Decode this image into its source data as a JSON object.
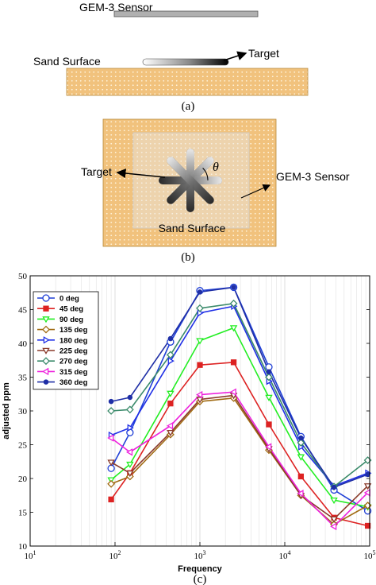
{
  "panel_a": {
    "sensor_label": "GEM-3 Sensor",
    "surface_label": "Sand Surface",
    "target_label": "Target",
    "caption": "(a)"
  },
  "panel_b": {
    "target_label": "Target",
    "sensor_label": "GEM-3 Sensor",
    "surface_label": "Sand Surface",
    "theta_label": "θ",
    "caption": "(b)"
  },
  "panel_c_caption": "(c)",
  "colors": {
    "sand": "#f1c27d",
    "sand_dot": "#fff4dd"
  },
  "chart_data": {
    "type": "line",
    "xscale": "log",
    "xlabel": "Frequency",
    "ylabel": "adjusted ppm",
    "xlim": [
      10,
      100000
    ],
    "ylim": [
      10,
      50
    ],
    "x_ticks": [
      {
        "base": "10",
        "exp": "1"
      },
      {
        "base": "10",
        "exp": "2"
      },
      {
        "base": "10",
        "exp": "3"
      },
      {
        "base": "10",
        "exp": "4"
      },
      {
        "base": "10",
        "exp": "5"
      }
    ],
    "y_ticks": [
      "10",
      "15",
      "20",
      "25",
      "30",
      "35",
      "40",
      "45",
      "50"
    ],
    "grid": "x-minor",
    "legend_position": "top-left",
    "x": [
      90,
      150,
      450,
      1000,
      2500,
      6500,
      15500,
      38000,
      95000
    ],
    "series": [
      {
        "name": "0 deg",
        "color": "#1f3fd6",
        "marker": "circle",
        "values": [
          21.5,
          26.8,
          40.2,
          47.8,
          48.3,
          36.5,
          26.2,
          18.3,
          15.2
        ]
      },
      {
        "name": "45 deg",
        "color": "#dd2222",
        "marker": "square",
        "values": [
          16.9,
          20.8,
          31.1,
          36.8,
          37.2,
          28.0,
          20.3,
          14.2,
          13.0
        ]
      },
      {
        "name": "90 deg",
        "color": "#22ee22",
        "marker": "tri-down",
        "values": [
          19.8,
          22.1,
          32.6,
          40.4,
          42.3,
          32.0,
          23.2,
          16.8,
          15.8
        ]
      },
      {
        "name": "135 deg",
        "color": "#a06a12",
        "marker": "diamond",
        "values": [
          19.2,
          20.3,
          26.5,
          31.4,
          31.9,
          24.2,
          17.5,
          13.2,
          16.0
        ]
      },
      {
        "name": "180 deg",
        "color": "#1f2fe6",
        "marker": "tri-right",
        "values": [
          26.4,
          27.5,
          37.4,
          44.5,
          45.5,
          34.4,
          24.7,
          18.9,
          20.8
        ]
      },
      {
        "name": "225 deg",
        "color": "#8a3a2a",
        "marker": "tri-down",
        "values": [
          22.4,
          20.8,
          26.8,
          31.7,
          32.3,
          24.4,
          17.5,
          14.0,
          18.9
        ]
      },
      {
        "name": "270 deg",
        "color": "#3a8a6a",
        "marker": "diamond",
        "values": [
          30.0,
          30.2,
          38.3,
          45.2,
          45.9,
          35.0,
          25.3,
          18.8,
          22.7
        ]
      },
      {
        "name": "315 deg",
        "color": "#ee22dd",
        "marker": "tri-left",
        "values": [
          26.0,
          23.9,
          27.8,
          32.4,
          32.8,
          24.7,
          17.8,
          12.9,
          17.9
        ]
      },
      {
        "name": "360 deg",
        "color": "#1f2fa6",
        "marker": "dot",
        "values": [
          31.4,
          32.0,
          40.7,
          47.6,
          48.3,
          35.8,
          26.0,
          18.7,
          20.6
        ]
      }
    ]
  }
}
